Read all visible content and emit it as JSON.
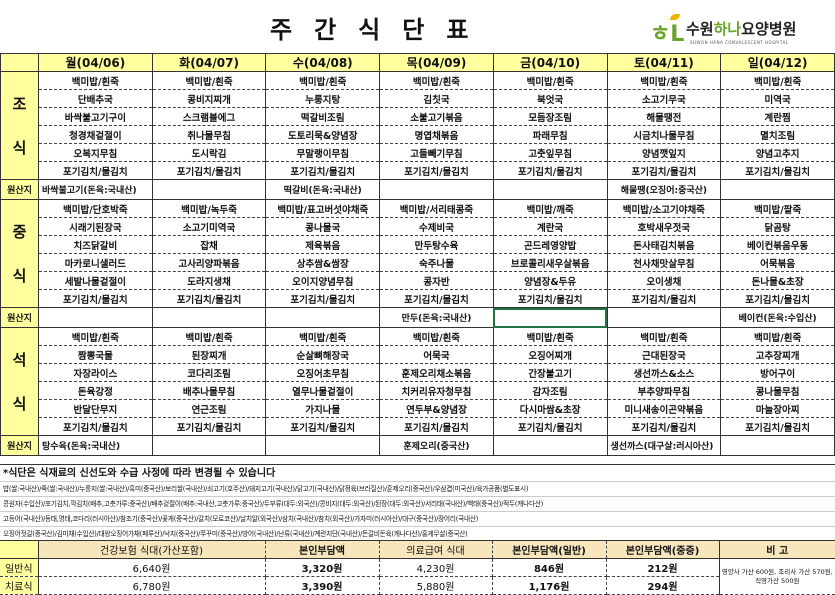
{
  "title": "주간식단표",
  "logo": {
    "mark": "하나",
    "name_a": "수원",
    "name_b": "하나",
    "name_c": "요양병원",
    "sub": "SUWON HANA CONVALESCENT HOSPITAL"
  },
  "days": [
    "월(04/06)",
    "화(04/07)",
    "수(04/08)",
    "목(04/09)",
    "금(04/10)",
    "토(04/11)",
    "일(04/12)"
  ],
  "origin_label": "원산지",
  "meals": [
    {
      "label_top": "조",
      "label_bottom": "식",
      "items": [
        [
          "백미밥/흰죽",
          "백미밥/흰죽",
          "백미밥/흰죽",
          "백미밥/흰죽",
          "백미밥/흰죽",
          "백미밥/흰죽",
          "백미밥/흰죽"
        ],
        [
          "단배추국",
          "콩비지찌개",
          "누룽지탕",
          "김칫국",
          "북엇국",
          "소고기무국",
          "미역국"
        ],
        [
          "바싹불고기구이",
          "스크램블에그",
          "떡갈비조림",
          "소불고기볶음",
          "모듬장조림",
          "해물땡전",
          "계란찜"
        ],
        [
          "청경채겉절이",
          "취나물무침",
          "도토리묵&양념장",
          "명엽채볶음",
          "파래무침",
          "시금치나물무침",
          "멸치조림"
        ],
        [
          "오복지무침",
          "도시락김",
          "무말랭이무침",
          "고들빼기무침",
          "고춧잎무침",
          "양념깻잎지",
          "양념고추지"
        ],
        [
          "포기김치/물김치",
          "포기김치/물김치",
          "포기김치/물김치",
          "포기김치/물김치",
          "포기김치/물김치",
          "포기김치/물김치",
          "포기김치/물김치"
        ]
      ],
      "origin": [
        "바싹불고기(돈육:국내산)",
        "",
        "떡갈비(돈육:국내산)",
        "",
        "",
        "해물땡(오징어:중국산)",
        ""
      ]
    },
    {
      "label_top": "중",
      "label_bottom": "식",
      "items": [
        [
          "백미밥/단호박죽",
          "백미밥/녹두죽",
          "백미밥/표고버섯야채죽",
          "백미밥/서리태콩죽",
          "백미밥/깨죽",
          "백미밥/소고기야채죽",
          "백미밥/팥죽"
        ],
        [
          "시래기된장국",
          "소고기미역국",
          "콩나물국",
          "수제비국",
          "계란국",
          "호박새우젓국",
          "닭곰탕"
        ],
        [
          "치즈닭갈비",
          "잡채",
          "제육볶음",
          "만두탕수육",
          "곤드레영양밥",
          "돈사태김치볶음",
          "베이컨볶음우동"
        ],
        [
          "마카로니샐러드",
          "고사리양파볶음",
          "상추쌈&쌈장",
          "숙주나물",
          "브로콜리새우살볶음",
          "천사채맛살무침",
          "어묵볶음"
        ],
        [
          "세발나물겉절이",
          "도라지생채",
          "오이지양념무침",
          "콩자반",
          "양념장&두유",
          "오이생채",
          "돈나물&초장"
        ],
        [
          "포기김치/물김치",
          "포기김치/물김치",
          "포기김치/물김치",
          "포기김치/물김치",
          "포기김치/물김치",
          "포기김치/물김치",
          "포기김치/물김치"
        ]
      ],
      "origin": [
        "",
        "",
        "",
        "만두(돈육:국내산)",
        "",
        "",
        "베이컨(돈육:수입산)"
      ]
    },
    {
      "label_top": "석",
      "label_bottom": "식",
      "items": [
        [
          "백미밥/흰죽",
          "백미밥/흰죽",
          "백미밥/흰죽",
          "백미밥/흰죽",
          "백미밥/흰죽",
          "백미밥/흰죽",
          "백미밥/흰죽"
        ],
        [
          "짬뽕국물",
          "된장찌개",
          "순살뼈해장국",
          "어묵국",
          "오징어찌개",
          "근대된장국",
          "고추장찌개"
        ],
        [
          "자장라이스",
          "코다리조림",
          "오징어초무침",
          "훈제오리채소볶음",
          "간장불고기",
          "생선까스&소스",
          "방어구이"
        ],
        [
          "돈육강정",
          "배추나물무침",
          "열무나물겉절이",
          "치커리유자청무침",
          "감자조림",
          "부추양파무침",
          "콩나물무침"
        ],
        [
          "반달단무지",
          "연근조림",
          "가지나물",
          "연두부&양념장",
          "다시마쌈&초장",
          "미니새송이곤약볶음",
          "마늘장아찌"
        ],
        [
          "포기김치/물김치",
          "포기김치/물김치",
          "포기김치/물김치",
          "포기김치/물김치",
          "포기김치/물김치",
          "포기김치/물김치",
          "포기김치/물김치"
        ]
      ],
      "origin": [
        "탕수육(돈육:국내산)",
        "",
        "",
        "훈제오리(중국산)",
        "",
        "생선까스(대구살:러시아산)",
        ""
      ]
    }
  ],
  "notes": {
    "headline": "*식단은 식재료의  신선도와 수급 사정에 따라 변경될 수 있습니다",
    "lines": [
      "밥(쌀:국내산)/죽(쌀:국내산)/누룽지(쌀:국내산)/흑미(중국산)/보리쌀(국내산)/쇠고기(호주산)/돼지고기(국내산)/닭고기(국내산)/닭정육(브라질산)/훈제오리(중국산)/우삼겹(미국산)/육가공품(별도표시)",
      "콩원자(수입산)/포기김치,깍김치(배추,고춧가루:중국산)/배추겉절이(배추:국내산,고춧가루:중국산)/두부류(대두:외국산)/콩비지(대두:외국산)/된장(대두:외국산)/서리태(국내산)/백태(중국산)/적두(캐나다산)",
      "고등어(국내산)/동태,명태,코다리(러시아산)/참조기(중국산)/꽃게(중국산)/갈치(모로코산)/날치알(외국산)/삼치(국내산)/참치(외국산)/가자미(러시아산)/대구(중국산)/장어리(국내산)",
      "오징어젓갈(중국산)/김미채(수입산)/대왕오징어가채(페루산)/낙지(중국산)/쭈꾸미(중국산)/방어(국내산)/난류(국내산)/계란지단(국내산)/돈갈비돈육(캐나다산)/홍게무살(중국산)"
    ]
  },
  "price": {
    "headers": [
      "건강보험 식대(가산포함)",
      "본인부담액",
      "의료급여 식대",
      "본인부담액(일반)",
      "본인부담액(중증)",
      "비 고"
    ],
    "rows": [
      {
        "label": "일반식",
        "values": [
          "6,640원",
          "3,320원",
          "4,230원",
          "846원",
          "212원"
        ]
      },
      {
        "label": "치료식",
        "values": [
          "6,780원",
          "3,390원",
          "5,880원",
          "1,176원",
          "294원"
        ]
      }
    ],
    "remark": "영양사 가산 600원, 조리사 가산 570원, 직영가산 500원"
  }
}
